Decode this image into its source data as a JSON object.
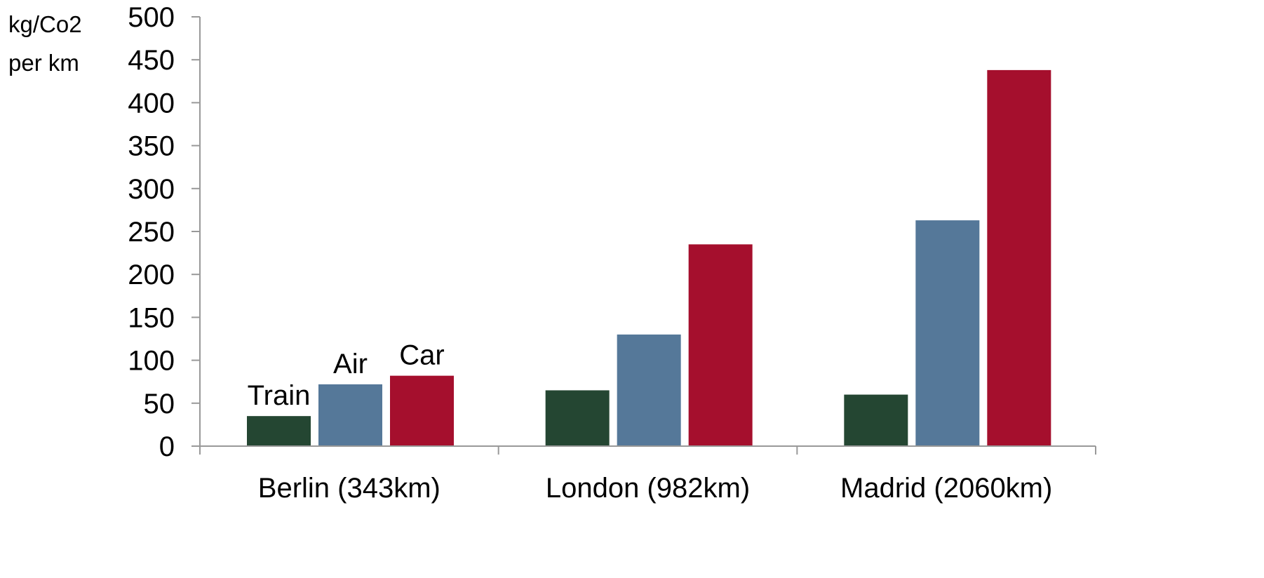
{
  "chart_data": {
    "type": "bar",
    "ylabel_lines": [
      "kg/Co2",
      "per km"
    ],
    "categories": [
      "Berlin (343km)",
      "London (982km)",
      "Madrid (2060km)"
    ],
    "series": [
      {
        "name": "Train",
        "color": "#244632",
        "values": [
          35,
          65,
          60
        ]
      },
      {
        "name": "Air",
        "color": "#557899",
        "values": [
          72,
          130,
          263
        ]
      },
      {
        "name": "Car",
        "color": "#a50f2d",
        "values": [
          82,
          235,
          438
        ]
      }
    ],
    "ylim": [
      0,
      500
    ],
    "yticks": [
      0,
      50,
      100,
      150,
      200,
      250,
      300,
      350,
      400,
      450,
      500
    ],
    "grid": false,
    "legend": "series labels above first category bars"
  }
}
